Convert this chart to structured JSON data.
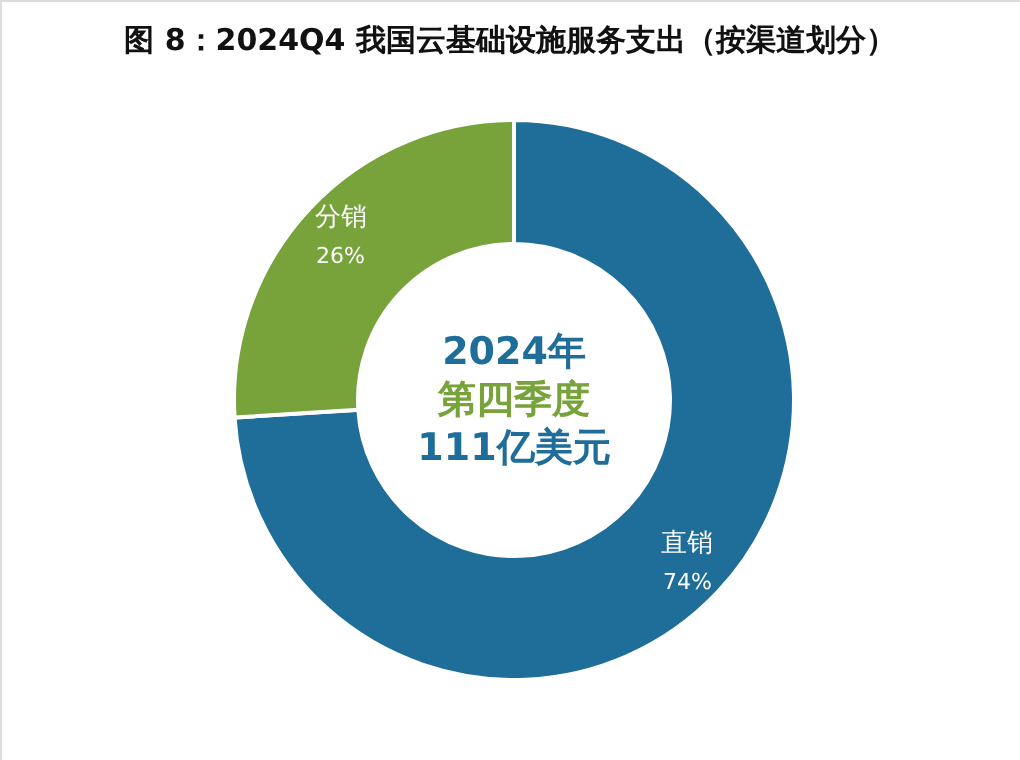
{
  "chart_data": {
    "type": "donut",
    "title": "图 8：2024Q4 我国云基础设施服务支出（按渠道划分）",
    "categories": [
      "直销",
      "分销"
    ],
    "values": [
      74,
      26
    ],
    "colors": [
      "#1f6e99",
      "#77a33a"
    ],
    "value_labels": [
      "74%",
      "26%"
    ],
    "annotations": [
      "2024年",
      "第四季度",
      "111亿美元"
    ]
  }
}
